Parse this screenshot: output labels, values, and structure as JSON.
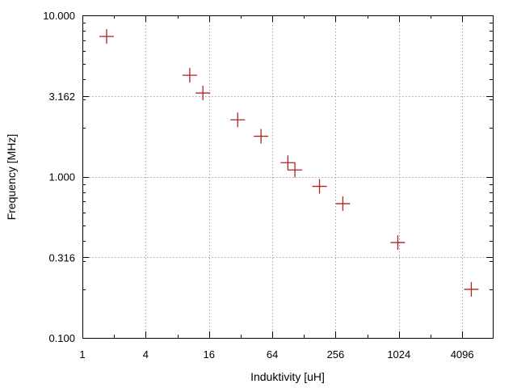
{
  "chart_data": {
    "type": "scatter",
    "title": "",
    "xlabel": "Induktivity [uH]",
    "ylabel": "Frequency [MHz]",
    "x_scale": "log2",
    "y_scale": "log10",
    "xlim": [
      1,
      8000
    ],
    "ylim": [
      0.1,
      10
    ],
    "xticks": [
      1,
      4,
      16,
      64,
      256,
      1024,
      4096
    ],
    "xtick_labels": [
      "1",
      "4",
      "16",
      "64",
      "256",
      "1024",
      "4096"
    ],
    "yticks": [
      0.1,
      0.316,
      1.0,
      3.162,
      10.0
    ],
    "ytick_labels": [
      "0.100",
      "0.316",
      "1.000",
      "3.162",
      "10.000"
    ],
    "grid": true,
    "legend": "none",
    "marker": "plus",
    "color": "#b22222",
    "series": [
      {
        "points": [
          {
            "x": 1.7,
            "y": 7.4
          },
          {
            "x": 10.5,
            "y": 4.25
          },
          {
            "x": 14,
            "y": 3.3
          },
          {
            "x": 30,
            "y": 2.25
          },
          {
            "x": 50,
            "y": 1.78
          },
          {
            "x": 90,
            "y": 1.22
          },
          {
            "x": 105,
            "y": 1.1
          },
          {
            "x": 180,
            "y": 0.87
          },
          {
            "x": 300,
            "y": 0.68
          },
          {
            "x": 1000,
            "y": 0.39
          },
          {
            "x": 5000,
            "y": 0.2
          }
        ]
      }
    ]
  }
}
